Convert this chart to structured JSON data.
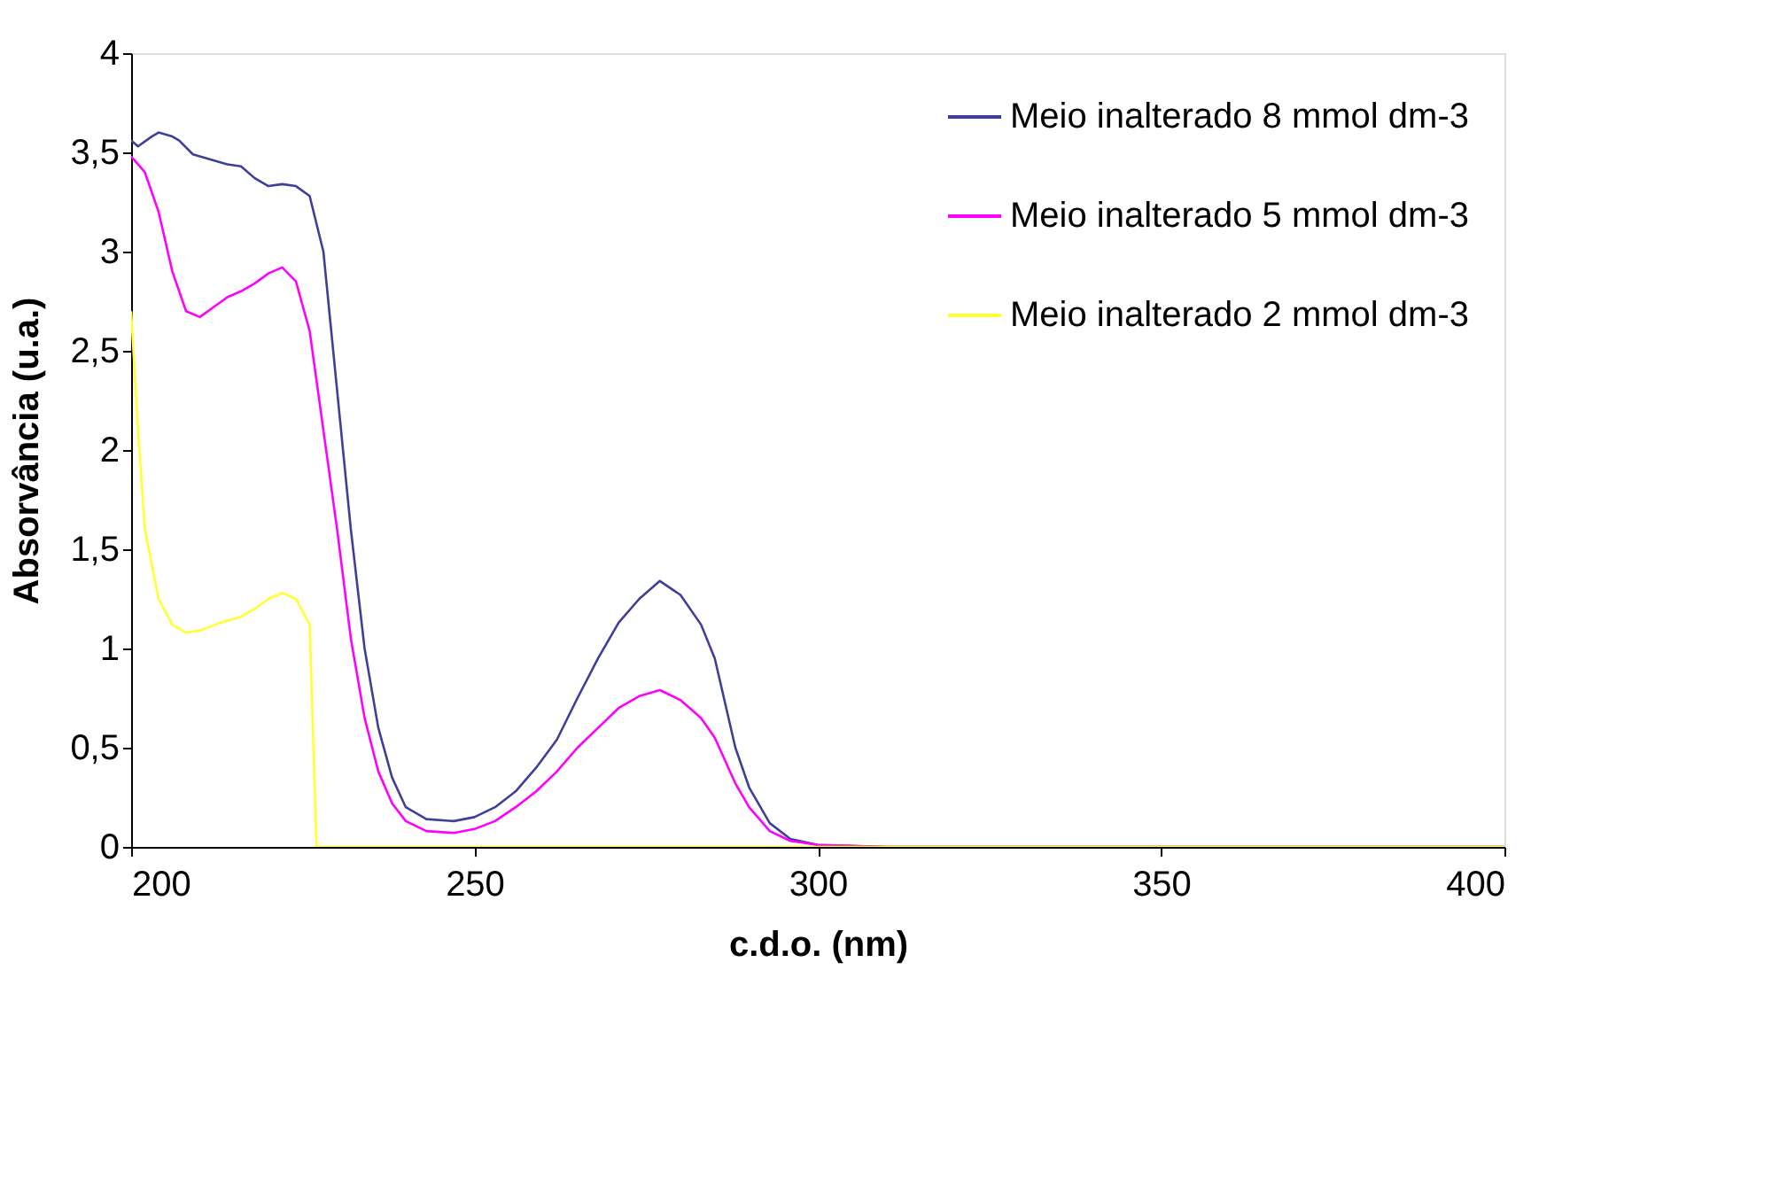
{
  "chart_data": {
    "type": "line",
    "xlabel": "c.d.o. (nm)",
    "ylabel": "Absorvância (u.a.)",
    "xlim": [
      200,
      400
    ],
    "xticks": [
      200,
      250,
      300,
      350,
      400
    ],
    "ylim": [
      0,
      4
    ],
    "yticks": [
      0,
      {
        "value": 0.5,
        "label": "0,5"
      },
      1,
      {
        "value": 1.5,
        "label": "1,5"
      },
      2,
      {
        "value": 2.5,
        "label": "2,5"
      },
      3,
      {
        "value": 3.5,
        "label": "3,5"
      },
      4
    ],
    "grid": false,
    "legend": "top right",
    "marker": "none",
    "line_style": "solid",
    "series": [
      {
        "name": "Meio inalterado 8 mmol dm-3",
        "color": "#3f3f99",
        "x": [
          200,
          201,
          203,
          204,
          206,
          207,
          209,
          212,
          214,
          216,
          218,
          220,
          222,
          224,
          226,
          228,
          230,
          232,
          234,
          236,
          238,
          240,
          243,
          247,
          250,
          253,
          256,
          259,
          262,
          265,
          268,
          271,
          274,
          277,
          280,
          283,
          285,
          288,
          290,
          293,
          296,
          300,
          310,
          400
        ],
        "values": [
          3.56,
          3.53,
          3.58,
          3.6,
          3.58,
          3.56,
          3.49,
          3.46,
          3.44,
          3.43,
          3.37,
          3.33,
          3.34,
          3.33,
          3.28,
          3.0,
          2.3,
          1.6,
          1.0,
          0.6,
          0.35,
          0.2,
          0.14,
          0.13,
          0.15,
          0.2,
          0.28,
          0.4,
          0.54,
          0.75,
          0.95,
          1.13,
          1.25,
          1.34,
          1.27,
          1.12,
          0.95,
          0.5,
          0.3,
          0.12,
          0.04,
          0.01,
          0,
          0
        ]
      },
      {
        "name": "Meio inalterado 5 mmol dm-3",
        "color": "#ff00ff",
        "x": [
          200,
          202,
          204,
          206,
          208,
          210,
          212,
          214,
          216,
          218,
          220,
          222,
          224,
          226,
          228,
          230,
          232,
          234,
          236,
          238,
          240,
          243,
          247,
          250,
          253,
          256,
          259,
          262,
          265,
          268,
          271,
          274,
          277,
          280,
          283,
          285,
          288,
          290,
          293,
          296,
          300,
          310,
          400
        ],
        "values": [
          3.48,
          3.4,
          3.2,
          2.9,
          2.7,
          2.67,
          2.72,
          2.77,
          2.8,
          2.84,
          2.89,
          2.92,
          2.85,
          2.6,
          2.1,
          1.6,
          1.05,
          0.65,
          0.38,
          0.22,
          0.13,
          0.08,
          0.07,
          0.09,
          0.13,
          0.2,
          0.28,
          0.38,
          0.5,
          0.6,
          0.7,
          0.76,
          0.79,
          0.74,
          0.65,
          0.55,
          0.32,
          0.2,
          0.08,
          0.03,
          0.01,
          0,
          0
        ]
      },
      {
        "name": "Meio inalterado 2 mmol dm-3",
        "color": "#ffff33",
        "x": [
          200,
          201,
          202,
          204,
          206,
          208,
          210,
          213,
          216,
          218,
          220,
          222,
          224,
          226,
          227,
          228,
          400
        ],
        "values": [
          2.7,
          2.1,
          1.6,
          1.25,
          1.12,
          1.08,
          1.09,
          1.13,
          1.16,
          1.2,
          1.25,
          1.28,
          1.25,
          1.12,
          0,
          0,
          0
        ]
      }
    ]
  }
}
